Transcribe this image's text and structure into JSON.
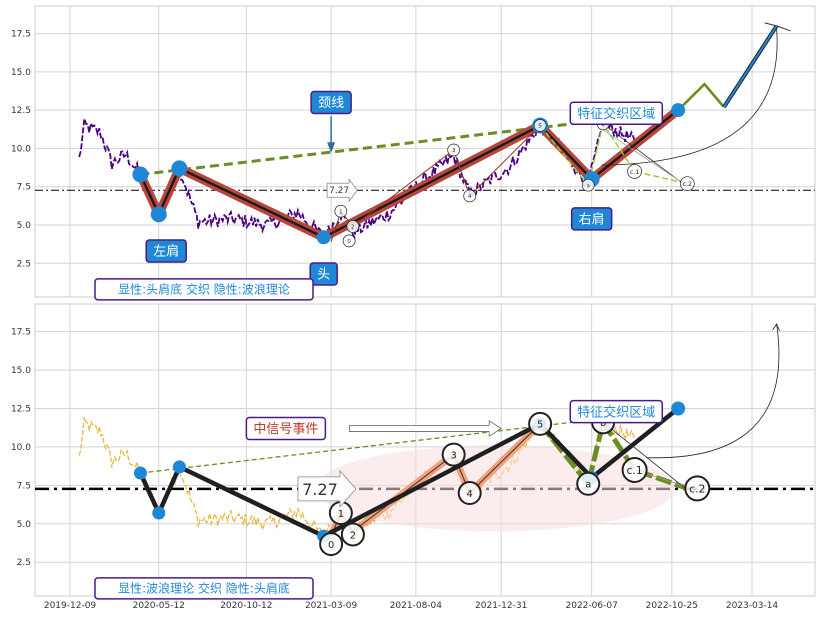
{
  "chart_data": [
    {
      "type": "line",
      "panel": "top",
      "ylim": [
        0.3,
        19.3
      ],
      "yticks": [
        "2.5",
        "5.0",
        "7.5",
        "10.0",
        "12.5",
        "15.0",
        "17.5"
      ],
      "hline": 7.27,
      "hline_label": "7.27",
      "price_color": "#4b0082",
      "pivots": [
        {
          "x": "2020-04-10",
          "y": 8.3
        },
        {
          "x": "2020-05-12",
          "y": 5.7
        },
        {
          "x": "2020-06-17",
          "y": 8.7
        },
        {
          "x": "2021-02-24",
          "y": 4.2
        },
        {
          "x": "2022-03-09",
          "y": 11.5
        },
        {
          "x": "2022-06-07",
          "y": 8.0
        },
        {
          "x": "2022-11-05",
          "y": 12.5
        }
      ],
      "projection": [
        {
          "x": "2022-11-05",
          "y": 12.5
        },
        {
          "x": "2022-12-21",
          "y": 14.2
        },
        {
          "x": "2023-01-24",
          "y": 12.7
        },
        {
          "x": "2023-04-26",
          "y": 18.0
        }
      ],
      "neckline": {
        "start": {
          "x": "2020-04-10",
          "y": 8.3
        },
        "end": {
          "x": "2022-07-10",
          "y": 11.9
        }
      },
      "wave_labels": [
        {
          "text": "0",
          "x": "2021-03-09",
          "y": 3.9
        },
        {
          "text": "1",
          "x": "2021-03-26",
          "y": 5.9
        },
        {
          "text": "2",
          "x": "2021-04-16",
          "y": 4.9
        },
        {
          "text": "3",
          "x": "2021-10-09",
          "y": 9.9
        },
        {
          "text": "4",
          "x": "2021-11-06",
          "y": 6.9
        },
        {
          "text": "5",
          "x": "2022-03-09",
          "y": 11.5
        },
        {
          "text": "a",
          "x": "2022-06-01",
          "y": 7.6
        },
        {
          "text": "b",
          "x": "2022-06-27",
          "y": 11.6
        },
        {
          "text": "c.1",
          "x": "2022-08-21",
          "y": 8.5
        },
        {
          "text": "c.2",
          "x": "2022-11-21",
          "y": 7.7
        }
      ],
      "annotations": {
        "neckline": "颈线",
        "left_shoulder": "左肩",
        "head": "头",
        "right_shoulder": "右肩",
        "zone": "特征交织区域",
        "caption": "显性:头肩底 交织 隐性:波浪理论"
      }
    },
    {
      "type": "line",
      "panel": "bottom",
      "ylim": [
        0.3,
        19.3
      ],
      "yticks": [
        "2.5",
        "5.0",
        "7.5",
        "10.0",
        "12.5",
        "15.0",
        "17.5"
      ],
      "hline": 7.27,
      "hline_label": "7.27",
      "price_color": "#e8b030",
      "xticks": [
        "2019-12-09",
        "2020-05-12",
        "2020-10-12",
        "2021-03-09",
        "2021-08-04",
        "2021-12-31",
        "2022-06-07",
        "2022-10-25",
        "2023-03-14"
      ],
      "pivots": [
        {
          "x": "2020-04-10",
          "y": 8.3
        },
        {
          "x": "2020-05-12",
          "y": 5.7
        },
        {
          "x": "2020-06-17",
          "y": 8.7
        },
        {
          "x": "2021-02-24",
          "y": 4.2
        },
        {
          "x": "2022-03-09",
          "y": 11.5
        },
        {
          "x": "2022-06-07",
          "y": 8.0
        },
        {
          "x": "2022-11-05",
          "y": 12.5
        }
      ],
      "wave": [
        {
          "x": "2021-03-09",
          "y": 4.2
        },
        {
          "x": "2021-03-26",
          "y": 5.7
        },
        {
          "x": "2021-04-16",
          "y": 4.5
        },
        {
          "x": "2021-10-09",
          "y": 9.5
        },
        {
          "x": "2021-11-06",
          "y": 7.0
        },
        {
          "x": "2022-03-09",
          "y": 11.5
        },
        {
          "x": "2022-06-01",
          "y": 7.6
        },
        {
          "x": "2022-06-27",
          "y": 11.6
        },
        {
          "x": "2022-08-21",
          "y": 8.5
        },
        {
          "x": "2022-11-21",
          "y": 7.3
        }
      ],
      "wave_labels": [
        "0",
        "1",
        "2",
        "3",
        "4",
        "5",
        "a",
        "b",
        "c.1",
        "c.2"
      ],
      "neckline": {
        "start": {
          "x": "2020-04-10",
          "y": 8.3
        },
        "end": {
          "x": "2022-07-10",
          "y": 11.9
        }
      },
      "annotations": {
        "mid_signal": "中信号事件",
        "zone": "特征交织区域",
        "caption": "显性:波浪理论 交织 隐性:头肩底"
      }
    }
  ]
}
